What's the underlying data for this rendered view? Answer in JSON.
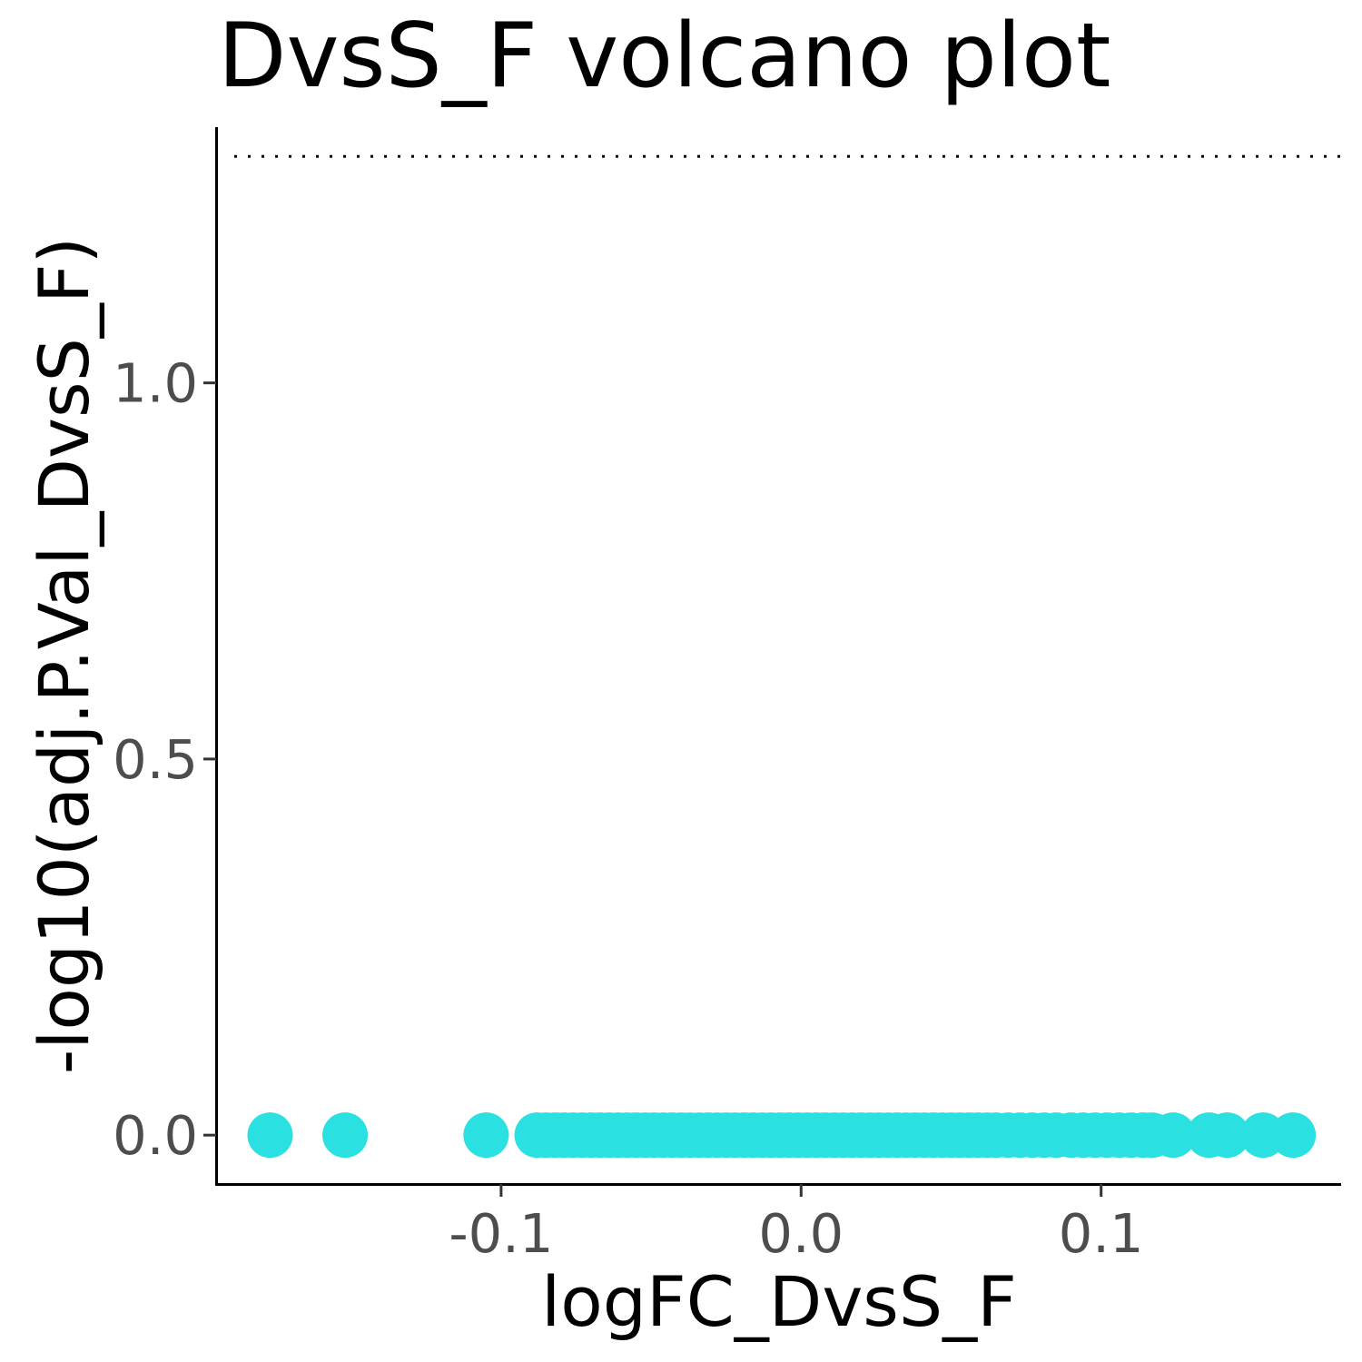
{
  "chart_data": {
    "type": "scatter",
    "title": "DvsS_F volcano plot",
    "xlabel": "logFC_DvsS_F",
    "ylabel": "-log10(adj.P.Val_DvsS_F)",
    "xlim": [
      -0.195,
      0.18
    ],
    "ylim": [
      -0.065,
      1.34
    ],
    "x_ticks": [
      -0.1,
      0.0,
      0.1
    ],
    "x_tick_labels": [
      "-0.1",
      "0.0",
      "0.1"
    ],
    "y_ticks": [
      0.0,
      0.5,
      1.0
    ],
    "y_tick_labels": [
      "0.0",
      "0.5",
      "1.0"
    ],
    "threshold_y": 1.301,
    "threshold_style": "dotted",
    "grid": false,
    "legend": "none",
    "point_color": "#2ae0e0",
    "series": [
      {
        "x": [
          -0.177,
          -0.152,
          -0.105,
          -0.088,
          -0.085,
          -0.082,
          -0.079,
          -0.076,
          -0.073,
          -0.07,
          -0.067,
          -0.064,
          -0.061,
          -0.058,
          -0.055,
          -0.052,
          -0.049,
          -0.046,
          -0.043,
          -0.04,
          -0.037,
          -0.034,
          -0.031,
          -0.028,
          -0.025,
          -0.022,
          -0.019,
          -0.016,
          -0.013,
          -0.01,
          -0.007,
          -0.004,
          -0.001,
          0.002,
          0.005,
          0.008,
          0.011,
          0.014,
          0.017,
          0.02,
          0.023,
          0.026,
          0.029,
          0.032,
          0.035,
          0.038,
          0.041,
          0.044,
          0.047,
          0.05,
          0.053,
          0.056,
          0.059,
          0.062,
          0.065,
          0.069,
          0.073,
          0.077,
          0.081,
          0.085,
          0.09,
          0.094,
          0.098,
          0.102,
          0.106,
          0.11,
          0.114,
          0.117,
          0.124,
          0.136,
          0.142,
          0.154,
          0.164
        ],
        "y": [
          0,
          0,
          0,
          0,
          0,
          0,
          0,
          0,
          0,
          0,
          0,
          0,
          0,
          0,
          0,
          0,
          0,
          0,
          0,
          0,
          0,
          0,
          0,
          0,
          0,
          0,
          0,
          0,
          0,
          0,
          0,
          0,
          0,
          0,
          0,
          0,
          0,
          0,
          0,
          0,
          0,
          0,
          0,
          0,
          0,
          0,
          0,
          0,
          0,
          0,
          0,
          0,
          0,
          0,
          0,
          0,
          0,
          0,
          0,
          0,
          0,
          0,
          0,
          0,
          0,
          0,
          0,
          0,
          0,
          0,
          0,
          0,
          0
        ]
      }
    ]
  }
}
